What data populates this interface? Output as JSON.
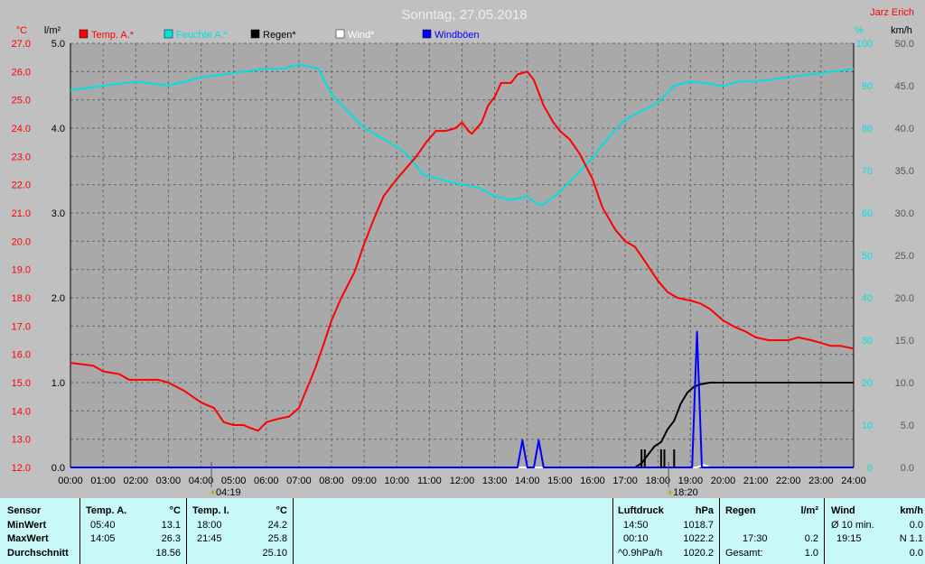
{
  "chart_data": {
    "type": "line",
    "title": "Sonntag, 27.05.2018",
    "author": "Jarz Erich",
    "unit_temp": "°C",
    "unit_rain": "l/m²",
    "unit_hum": "%",
    "unit_wind": "km/h",
    "x_ticks": [
      "00:00",
      "01:00",
      "02:00",
      "03:00",
      "04:00",
      "05:00",
      "06:00",
      "07:00",
      "08:00",
      "09:00",
      "10:00",
      "11:00",
      "12:00",
      "13:00",
      "14:00",
      "15:00",
      "16:00",
      "17:00",
      "18:00",
      "19:00",
      "20:00",
      "21:00",
      "22:00",
      "23:00",
      "24:00"
    ],
    "xlim": [
      0,
      24
    ],
    "temp_axis": {
      "ylim": [
        12,
        27
      ],
      "ticks": [
        "12.0",
        "13.0",
        "14.0",
        "15.0",
        "16.0",
        "17.0",
        "18.0",
        "19.0",
        "20.0",
        "21.0",
        "22.0",
        "23.0",
        "24.0",
        "25.0",
        "26.0",
        "27.0"
      ]
    },
    "rain_axis": {
      "ylim": [
        0,
        5
      ],
      "ticks": [
        "0.0",
        "1.0",
        "2.0",
        "3.0",
        "4.0",
        "5.0"
      ]
    },
    "hum_axis": {
      "ylim": [
        0,
        100
      ],
      "ticks": [
        "0",
        "10",
        "20",
        "30",
        "40",
        "50",
        "60",
        "70",
        "80",
        "90",
        "100"
      ]
    },
    "wind_axis": {
      "ylim": [
        0,
        50
      ],
      "ticks": [
        "0.0",
        "5.0",
        "10.0",
        "15.0",
        "20.0",
        "25.0",
        "30.0",
        "35.0",
        "40.0",
        "45.0",
        "50.0"
      ]
    },
    "sunrise": "04:19",
    "sunset": "18:20",
    "sunrise_h": 4.32,
    "sunset_h": 18.33,
    "legend": [
      {
        "name": "Temp. A.*",
        "color": "#ff0000"
      },
      {
        "name": "Feuchte A.*",
        "color": "#00e0e0"
      },
      {
        "name": "Regen*",
        "color": "#000000"
      },
      {
        "name": "Wind*",
        "color": "#ffffff"
      },
      {
        "name": "Windböen",
        "color": "#0000ff"
      }
    ],
    "series": [
      {
        "name": "Temp. A.*",
        "color": "#ff0000",
        "axis": "temp",
        "x": [
          0,
          0.7,
          1,
          1.5,
          1.8,
          2.3,
          2.7,
          3,
          3.5,
          4,
          4.4,
          4.7,
          5,
          5.3,
          5.5,
          5.75,
          6,
          6.3,
          6.7,
          7,
          7.5,
          7.8,
          8,
          8.3,
          8.7,
          9,
          9.3,
          9.6,
          10,
          10.3,
          10.6,
          10.9,
          11.2,
          11.5,
          11.8,
          12,
          12.2,
          12.3,
          12.6,
          12.8,
          13,
          13.2,
          13.5,
          13.7,
          14,
          14.2,
          14.5,
          14.8,
          15,
          15.3,
          15.6,
          16,
          16.3,
          16.7,
          17,
          17.3,
          17.6,
          18,
          18.3,
          18.6,
          19,
          19.3,
          19.6,
          20,
          20.3,
          20.7,
          21,
          21.4,
          22,
          22.3,
          22.7,
          23,
          23.3,
          23.6,
          24
        ],
        "values": [
          15.7,
          15.6,
          15.4,
          15.3,
          15.1,
          15.1,
          15.1,
          15.0,
          14.7,
          14.3,
          14.1,
          13.6,
          13.5,
          13.5,
          13.4,
          13.3,
          13.6,
          13.7,
          13.8,
          14.1,
          15.5,
          16.5,
          17.2,
          18.0,
          18.9,
          19.9,
          20.8,
          21.6,
          22.2,
          22.6,
          23.0,
          23.5,
          23.9,
          23.9,
          24.0,
          24.2,
          23.9,
          23.8,
          24.2,
          24.8,
          25.1,
          25.6,
          25.6,
          25.9,
          26.0,
          25.7,
          24.8,
          24.2,
          23.9,
          23.6,
          23.1,
          22.2,
          21.2,
          20.4,
          20.0,
          19.8,
          19.3,
          18.6,
          18.2,
          18.0,
          17.9,
          17.8,
          17.6,
          17.2,
          17.0,
          16.8,
          16.6,
          16.5,
          16.5,
          16.6,
          16.5,
          16.4,
          16.3,
          16.3,
          16.2
        ]
      },
      {
        "name": "Feuchte A.*",
        "color": "#00e0e0",
        "axis": "hum",
        "x": [
          0,
          1,
          2,
          3,
          4,
          5,
          6,
          6.5,
          7,
          7.6,
          8,
          8.5,
          9,
          9.7,
          10.3,
          10.8,
          11.3,
          11.8,
          12.5,
          13,
          13.5,
          14,
          14.3,
          14.5,
          15,
          15.5,
          16,
          16.5,
          17,
          17.5,
          18,
          18.5,
          19,
          20,
          20.5,
          21,
          22,
          23,
          24
        ],
        "values": [
          89,
          90,
          91,
          90,
          92,
          93,
          94,
          94,
          95,
          94,
          88,
          84,
          80,
          77,
          74,
          69,
          68,
          67,
          66,
          64,
          63,
          64,
          62,
          62,
          65,
          69,
          73,
          78,
          82,
          84,
          86,
          90,
          91,
          90,
          91,
          91,
          92,
          93,
          94
        ]
      },
      {
        "name": "Regen*",
        "color": "#000000",
        "axis": "rain",
        "x": [
          0,
          17.3,
          17.5,
          17.7,
          17.9,
          18.1,
          18.3,
          18.5,
          18.7,
          18.9,
          19.1,
          19.3,
          19.6,
          20,
          24
        ],
        "values": [
          0,
          0,
          0.05,
          0.15,
          0.25,
          0.3,
          0.45,
          0.55,
          0.75,
          0.88,
          0.95,
          0.98,
          1.0,
          1.0,
          1.0
        ]
      },
      {
        "name": "Wind*",
        "color": "#ffffff",
        "axis": "wind",
        "x": [
          0,
          19.2,
          19.4,
          19.6,
          24
        ],
        "values": [
          0,
          0,
          0.3,
          0,
          0
        ]
      },
      {
        "name": "Windböen",
        "color": "#0000ff",
        "axis": "wind",
        "x": [
          0,
          13.7,
          13.85,
          14,
          14.2,
          14.35,
          14.5,
          19.05,
          19.2,
          19.35,
          19.5,
          24
        ],
        "values": [
          0,
          0,
          3.2,
          0,
          0,
          3.2,
          0,
          0,
          16,
          0,
          0,
          0
        ]
      }
    ],
    "rain_ticks_h": [
      17.5,
      17.6,
      18.1,
      18.2,
      18.5
    ]
  },
  "stats": {
    "sensor": {
      "header": "Sensor",
      "rows": [
        "MinWert",
        "MaxWert",
        "Durchschnitt"
      ]
    },
    "temp_a": {
      "header": "Temp. A.",
      "unit": "°C",
      "times": [
        "05:40",
        "14:05",
        ""
      ],
      "values": [
        "13.1",
        "26.3",
        "18.56"
      ]
    },
    "temp_i": {
      "header": "Temp. I.",
      "unit": "°C",
      "times": [
        "18:00",
        "21:45",
        ""
      ],
      "values": [
        "24.2",
        "25.8",
        "25.10"
      ]
    },
    "pressure": {
      "header": "Luftdruck",
      "unit": "hPa",
      "times": [
        "14:50",
        "00:10",
        "^0.9hPa/h"
      ],
      "values": [
        "1018.7",
        "1022.2",
        "1020.2"
      ]
    },
    "rain": {
      "header": "Regen",
      "unit": "l/m²",
      "times": [
        "",
        "17:30",
        "Gesamt:"
      ],
      "values": [
        "",
        "0.2",
        "1.0"
      ]
    },
    "wind": {
      "header": "Wind",
      "unit": "km/h",
      "times": [
        "Ø 10 min.",
        "19:15",
        ""
      ],
      "values": [
        "0.0",
        "N 1.1",
        "0.0"
      ]
    }
  }
}
